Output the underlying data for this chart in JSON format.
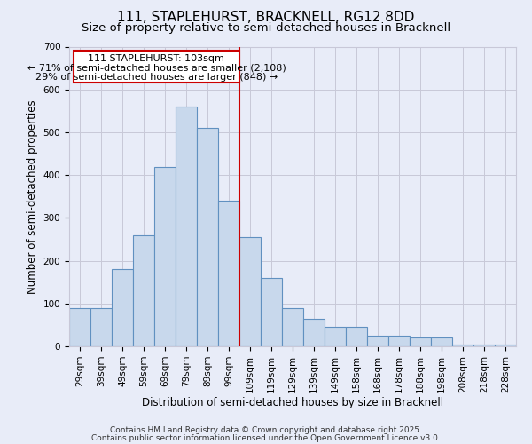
{
  "title_line1": "111, STAPLEHURST, BRACKNELL, RG12 8DD",
  "title_line2": "Size of property relative to semi-detached houses in Bracknell",
  "xlabel": "Distribution of semi-detached houses by size in Bracknell",
  "ylabel": "Number of semi-detached properties",
  "footer_line1": "Contains HM Land Registry data © Crown copyright and database right 2025.",
  "footer_line2": "Contains public sector information licensed under the Open Government Licence v3.0.",
  "property_size": 103,
  "annotation_title": "111 STAPLEHURST: 103sqm",
  "annotation_line1": "← 71% of semi-detached houses are smaller (2,108)",
  "annotation_line2": "29% of semi-detached houses are larger (848) →",
  "bin_edges": [
    24,
    34,
    44,
    54,
    64,
    74,
    84,
    94,
    104,
    114,
    124,
    134,
    144,
    154,
    164,
    174,
    184,
    194,
    204,
    214,
    224,
    234
  ],
  "bin_labels": [
    "29sqm",
    "39sqm",
    "49sqm",
    "59sqm",
    "69sqm",
    "79sqm",
    "89sqm",
    "99sqm",
    "109sqm",
    "119sqm",
    "129sqm",
    "139sqm",
    "149sqm",
    "158sqm",
    "168sqm",
    "178sqm",
    "188sqm",
    "198sqm",
    "208sqm",
    "218sqm",
    "228sqm"
  ],
  "counts": [
    90,
    90,
    180,
    260,
    420,
    560,
    510,
    340,
    255,
    160,
    90,
    65,
    45,
    45,
    25,
    25,
    20,
    20,
    5,
    5,
    5
  ],
  "bar_color": "#c8d8ec",
  "bar_edge_color": "#6090c0",
  "vline_color": "#cc0000",
  "vline_x": 104,
  "ylim": [
    0,
    700
  ],
  "yticks": [
    0,
    100,
    200,
    300,
    400,
    500,
    600,
    700
  ],
  "grid_color": "#c8c8d8",
  "background_color": "#e8ecf8",
  "box_edge_color": "#cc0000",
  "box_face_color": "#ffffff",
  "title_fontsize": 11,
  "subtitle_fontsize": 9.5,
  "axis_label_fontsize": 8.5,
  "tick_fontsize": 7.5,
  "annotation_fontsize": 8,
  "footer_fontsize": 6.5
}
